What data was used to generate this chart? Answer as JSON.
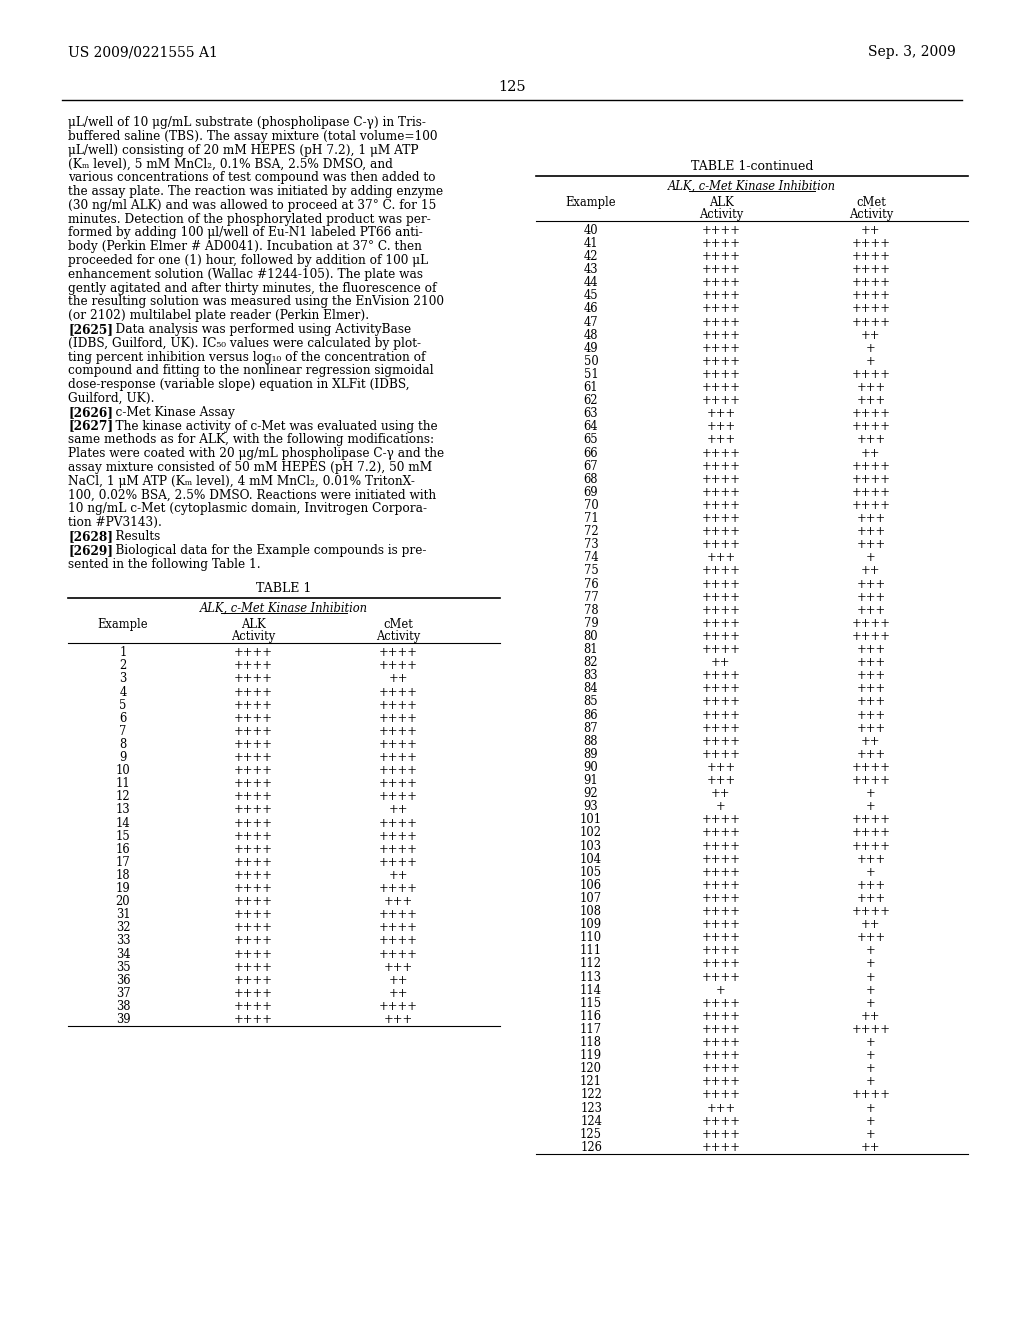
{
  "page_number": "125",
  "patent_number": "US 2009/0221555 A1",
  "date": "Sep. 3, 2009",
  "background_color": "#ffffff",
  "text_color": "#000000",
  "left_paragraphs": [
    "μL/well of 10 μg/mL substrate (phospholipase C-γ) in Tris-buffered saline (TBS). The assay mixture (total volume=100 μL/well) consisting of 20 mM HEPES (pH 7.2), 1 μM ATP (K_m level), 5 mM MnCl2, 0.1% BSA, 2.5% DMSO, and various concentrations of test compound was then added to the assay plate. The reaction was initiated by adding enzyme (30 ng/ml ALK) and was allowed to proceed at 37° C. for 15 minutes. Detection of the phosphorylated product was per-formed by adding 100 μl/well of Eu-N1 labeled PT66 anti-body (Perkin Elmer # AD0041). Incubation at 37° C. then proceeded for one (1) hour, followed by addition of 100 μL enhancement solution (Wallac #1244-105). The plate was gently agitated and after thirty minutes, the fluorescence of the resulting solution was measured using the EnVision 2100 (or 2102) multilabel plate reader (Perkin Elmer).",
    "[2625]    Data analysis was performed using ActivityBase (IDBS, Guilford, UK). IC50 values were calculated by plot-ting percent inhibition versus log10 of the concentration of compound and fitting to the nonlinear regression sigmoidal dose-response (variable slope) equation in XLFit (IDBS, Guilford, UK).",
    "[2626]    c-Met Kinase Assay",
    "[2627]    The kinase activity of c-Met was evaluated using the same methods as for ALK, with the following modifications: Plates were coated with 20 μg/mL phospholipase C-γ and the assay mixture consisted of 50 mM HEPES (pH 7.2), 50 mM NaCl, 1 μM ATP (Km level), 4 mM MnCl2, 0.01% TritonX-100, 0.02% BSA, 2.5% DMSO. Reactions were initiated with 10 ng/mL c-Met (cytoplasmic domain, Invitrogen Corpora-tion #PV3143).",
    "[2628]    Results",
    "[2629]    Biological data for the Example compounds is pre-sented in the following Table 1."
  ],
  "table1_title": "TABLE 1",
  "table1_subtitle": "ALK, c-Met Kinase Inhibition",
  "table1_data": [
    [
      "1",
      "++++",
      "++++"
    ],
    [
      "2",
      "++++",
      "++++"
    ],
    [
      "3",
      "++++",
      "++"
    ],
    [
      "4",
      "++++",
      "++++"
    ],
    [
      "5",
      "++++",
      "++++"
    ],
    [
      "6",
      "++++",
      "++++"
    ],
    [
      "7",
      "++++",
      "++++"
    ],
    [
      "8",
      "++++",
      "++++"
    ],
    [
      "9",
      "++++",
      "++++"
    ],
    [
      "10",
      "++++",
      "++++"
    ],
    [
      "11",
      "++++",
      "++++"
    ],
    [
      "12",
      "++++",
      "++++"
    ],
    [
      "13",
      "++++",
      "++"
    ],
    [
      "14",
      "++++",
      "++++"
    ],
    [
      "15",
      "++++",
      "++++"
    ],
    [
      "16",
      "++++",
      "++++"
    ],
    [
      "17",
      "++++",
      "++++"
    ],
    [
      "18",
      "++++",
      "++"
    ],
    [
      "19",
      "++++",
      "++++"
    ],
    [
      "20",
      "++++",
      "+++"
    ],
    [
      "31",
      "++++",
      "++++"
    ],
    [
      "32",
      "++++",
      "++++"
    ],
    [
      "33",
      "++++",
      "++++"
    ],
    [
      "34",
      "++++",
      "++++"
    ],
    [
      "35",
      "++++",
      "+++"
    ],
    [
      "36",
      "++++",
      "++"
    ],
    [
      "37",
      "++++",
      "++"
    ],
    [
      "38",
      "++++",
      "++++"
    ],
    [
      "39",
      "++++",
      "+++"
    ]
  ],
  "table2_title": "TABLE 1-continued",
  "table2_subtitle": "ALK, c-Met Kinase Inhibition",
  "table2_data": [
    [
      "40",
      "++++",
      "++"
    ],
    [
      "41",
      "++++",
      "++++"
    ],
    [
      "42",
      "++++",
      "++++"
    ],
    [
      "43",
      "++++",
      "++++"
    ],
    [
      "44",
      "++++",
      "++++"
    ],
    [
      "45",
      "++++",
      "++++"
    ],
    [
      "46",
      "++++",
      "++++"
    ],
    [
      "47",
      "++++",
      "++++"
    ],
    [
      "48",
      "++++",
      "++"
    ],
    [
      "49",
      "++++",
      "+"
    ],
    [
      "50",
      "++++",
      "+"
    ],
    [
      "51",
      "++++",
      "++++"
    ],
    [
      "61",
      "++++",
      "+++"
    ],
    [
      "62",
      "++++",
      "+++"
    ],
    [
      "63",
      "+++",
      "++++"
    ],
    [
      "64",
      "+++",
      "++++"
    ],
    [
      "65",
      "+++",
      "+++"
    ],
    [
      "66",
      "++++",
      "++"
    ],
    [
      "67",
      "++++",
      "++++"
    ],
    [
      "68",
      "++++",
      "++++"
    ],
    [
      "69",
      "++++",
      "++++"
    ],
    [
      "70",
      "++++",
      "++++"
    ],
    [
      "71",
      "++++",
      "+++"
    ],
    [
      "72",
      "++++",
      "+++"
    ],
    [
      "73",
      "++++",
      "+++"
    ],
    [
      "74",
      "+++",
      "+"
    ],
    [
      "75",
      "++++",
      "++"
    ],
    [
      "76",
      "++++",
      "+++"
    ],
    [
      "77",
      "++++",
      "+++"
    ],
    [
      "78",
      "++++",
      "+++"
    ],
    [
      "79",
      "++++",
      "++++"
    ],
    [
      "80",
      "++++",
      "++++"
    ],
    [
      "81",
      "++++",
      "+++"
    ],
    [
      "82",
      "++",
      "+++"
    ],
    [
      "83",
      "++++",
      "+++"
    ],
    [
      "84",
      "++++",
      "+++"
    ],
    [
      "85",
      "++++",
      "+++"
    ],
    [
      "86",
      "++++",
      "+++"
    ],
    [
      "87",
      "++++",
      "+++"
    ],
    [
      "88",
      "++++",
      "++"
    ],
    [
      "89",
      "++++",
      "+++"
    ],
    [
      "90",
      "+++",
      "++++"
    ],
    [
      "91",
      "+++",
      "++++"
    ],
    [
      "92",
      "++",
      "+"
    ],
    [
      "93",
      "+",
      "+"
    ],
    [
      "101",
      "++++",
      "++++"
    ],
    [
      "102",
      "++++",
      "++++"
    ],
    [
      "103",
      "++++",
      "++++"
    ],
    [
      "104",
      "++++",
      "+++"
    ],
    [
      "105",
      "++++",
      "+"
    ],
    [
      "106",
      "++++",
      "+++"
    ],
    [
      "107",
      "++++",
      "+++"
    ],
    [
      "108",
      "++++",
      "++++"
    ],
    [
      "109",
      "++++",
      "++"
    ],
    [
      "110",
      "++++",
      "+++"
    ],
    [
      "111",
      "++++",
      "+"
    ],
    [
      "112",
      "++++",
      "+"
    ],
    [
      "113",
      "++++",
      "+"
    ],
    [
      "114",
      "+",
      "+"
    ],
    [
      "115",
      "++++",
      "+"
    ],
    [
      "116",
      "++++",
      "++"
    ],
    [
      "117",
      "++++",
      "++++"
    ],
    [
      "118",
      "++++",
      "+"
    ],
    [
      "119",
      "++++",
      "+"
    ],
    [
      "120",
      "++++",
      "+"
    ],
    [
      "121",
      "++++",
      "+"
    ],
    [
      "122",
      "++++",
      "++++"
    ],
    [
      "123",
      "+++",
      "+"
    ],
    [
      "124",
      "++++",
      "+"
    ],
    [
      "125",
      "++++",
      "+"
    ],
    [
      "126",
      "++++",
      "++"
    ]
  ]
}
